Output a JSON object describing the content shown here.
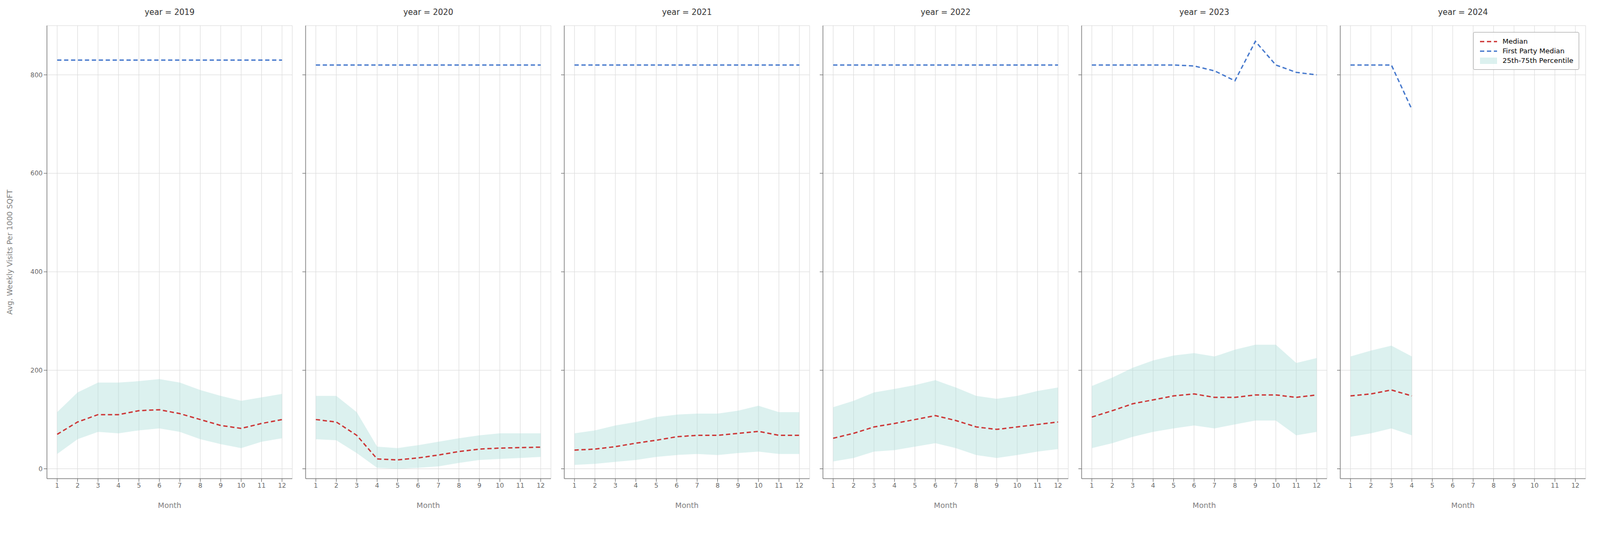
{
  "chart_data": [
    {
      "type": "line",
      "title": "year = 2019",
      "xlabel": "Month",
      "ylabel": "Avg. Weekly Visits Per 1000 SQFT",
      "x": [
        1,
        2,
        3,
        4,
        5,
        6,
        7,
        8,
        9,
        10,
        11,
        12
      ],
      "xlim": [
        0.5,
        12.5
      ],
      "xticks": [
        1,
        2,
        3,
        4,
        5,
        6,
        7,
        8,
        9,
        10,
        11,
        12
      ],
      "ylim": [
        -20,
        900
      ],
      "yticks": [
        0,
        200,
        400,
        600,
        800
      ],
      "grid": true,
      "series": [
        {
          "name": "Median",
          "color": "#cc3333",
          "line_style": "dashed",
          "values": [
            70,
            95,
            110,
            110,
            118,
            120,
            112,
            100,
            88,
            82,
            92,
            100
          ]
        },
        {
          "name": "First Party Median",
          "color": "#4477cc",
          "line_style": "dashed",
          "values": [
            830,
            830,
            830,
            830,
            830,
            830,
            830,
            830,
            830,
            830,
            830,
            830
          ]
        },
        {
          "name": "25th-75th Percentile",
          "type": "area",
          "color": "#b2dfdb",
          "lower": [
            30,
            60,
            75,
            72,
            78,
            82,
            75,
            60,
            50,
            42,
            55,
            62
          ],
          "upper": [
            115,
            155,
            175,
            175,
            178,
            182,
            175,
            160,
            148,
            138,
            145,
            152
          ]
        }
      ]
    },
    {
      "type": "line",
      "title": "year = 2020",
      "xlabel": "Month",
      "x": [
        1,
        2,
        3,
        4,
        5,
        6,
        7,
        8,
        9,
        10,
        11,
        12
      ],
      "xlim": [
        0.5,
        12.5
      ],
      "xticks": [
        1,
        2,
        3,
        4,
        5,
        6,
        7,
        8,
        9,
        10,
        11,
        12
      ],
      "ylim": [
        -20,
        900
      ],
      "yticks": [
        0,
        200,
        400,
        600,
        800
      ],
      "grid": true,
      "tick_labels": "x",
      "series": [
        {
          "name": "Median",
          "color": "#cc3333",
          "line_style": "dashed",
          "values": [
            100,
            95,
            68,
            20,
            18,
            22,
            28,
            35,
            40,
            42,
            43,
            44
          ]
        },
        {
          "name": "First Party Median",
          "color": "#4477cc",
          "line_style": "dashed",
          "values": [
            820,
            820,
            820,
            820,
            820,
            820,
            820,
            820,
            820,
            820,
            820,
            820
          ]
        },
        {
          "name": "25th-75th Percentile",
          "type": "area",
          "color": "#b2dfdb",
          "lower": [
            60,
            58,
            32,
            2,
            0,
            2,
            5,
            12,
            18,
            20,
            22,
            24
          ],
          "upper": [
            148,
            148,
            115,
            45,
            42,
            48,
            55,
            62,
            68,
            72,
            72,
            72
          ]
        }
      ]
    },
    {
      "type": "line",
      "title": "year = 2021",
      "xlabel": "Month",
      "x": [
        1,
        2,
        3,
        4,
        5,
        6,
        7,
        8,
        9,
        10,
        11,
        12
      ],
      "xlim": [
        0.5,
        12.5
      ],
      "xticks": [
        1,
        2,
        3,
        4,
        5,
        6,
        7,
        8,
        9,
        10,
        11,
        12
      ],
      "ylim": [
        -20,
        900
      ],
      "yticks": [
        0,
        200,
        400,
        600,
        800
      ],
      "grid": true,
      "tick_labels": "x",
      "series": [
        {
          "name": "Median",
          "color": "#cc3333",
          "line_style": "dashed",
          "values": [
            38,
            40,
            45,
            52,
            58,
            65,
            68,
            68,
            72,
            76,
            68,
            68
          ]
        },
        {
          "name": "First Party Median",
          "color": "#4477cc",
          "line_style": "dashed",
          "values": [
            820,
            820,
            820,
            820,
            820,
            820,
            820,
            820,
            820,
            820,
            820,
            820
          ]
        },
        {
          "name": "25th-75th Percentile",
          "type": "area",
          "color": "#b2dfdb",
          "lower": [
            8,
            10,
            14,
            18,
            24,
            28,
            30,
            28,
            32,
            35,
            30,
            30
          ],
          "upper": [
            72,
            78,
            88,
            95,
            105,
            110,
            112,
            112,
            118,
            128,
            115,
            115
          ]
        }
      ]
    },
    {
      "type": "line",
      "title": "year = 2022",
      "xlabel": "Month",
      "x": [
        1,
        2,
        3,
        4,
        5,
        6,
        7,
        8,
        9,
        10,
        11,
        12
      ],
      "xlim": [
        0.5,
        12.5
      ],
      "xticks": [
        1,
        2,
        3,
        4,
        5,
        6,
        7,
        8,
        9,
        10,
        11,
        12
      ],
      "ylim": [
        -20,
        900
      ],
      "yticks": [
        0,
        200,
        400,
        600,
        800
      ],
      "grid": true,
      "tick_labels": "x",
      "series": [
        {
          "name": "Median",
          "color": "#cc3333",
          "line_style": "dashed",
          "values": [
            62,
            72,
            85,
            92,
            100,
            108,
            98,
            85,
            80,
            85,
            90,
            95
          ]
        },
        {
          "name": "First Party Median",
          "color": "#4477cc",
          "line_style": "dashed",
          "values": [
            820,
            820,
            820,
            820,
            820,
            820,
            820,
            820,
            820,
            820,
            820,
            820
          ]
        },
        {
          "name": "25th-75th Percentile",
          "type": "area",
          "color": "#b2dfdb",
          "lower": [
            15,
            22,
            35,
            38,
            45,
            52,
            42,
            28,
            22,
            28,
            35,
            40
          ],
          "upper": [
            125,
            138,
            155,
            162,
            170,
            180,
            165,
            148,
            142,
            148,
            158,
            165
          ]
        }
      ]
    },
    {
      "type": "line",
      "title": "year = 2023",
      "xlabel": "Month",
      "x": [
        1,
        2,
        3,
        4,
        5,
        6,
        7,
        8,
        9,
        10,
        11,
        12
      ],
      "xlim": [
        0.5,
        12.5
      ],
      "xticks": [
        1,
        2,
        3,
        4,
        5,
        6,
        7,
        8,
        9,
        10,
        11,
        12
      ],
      "ylim": [
        -20,
        900
      ],
      "yticks": [
        0,
        200,
        400,
        600,
        800
      ],
      "grid": true,
      "tick_labels": "x",
      "series": [
        {
          "name": "Median",
          "color": "#cc3333",
          "line_style": "dashed",
          "values": [
            105,
            118,
            132,
            140,
            148,
            152,
            145,
            145,
            150,
            150,
            145,
            150
          ]
        },
        {
          "name": "First Party Median",
          "color": "#4477cc",
          "line_style": "dashed",
          "values": [
            820,
            820,
            820,
            820,
            820,
            818,
            808,
            788,
            868,
            820,
            805,
            800
          ]
        },
        {
          "name": "25th-75th Percentile",
          "type": "area",
          "color": "#b2dfdb",
          "lower": [
            42,
            52,
            65,
            75,
            82,
            88,
            82,
            90,
            98,
            98,
            68,
            75
          ],
          "upper": [
            168,
            185,
            205,
            220,
            230,
            235,
            228,
            242,
            252,
            252,
            215,
            225
          ]
        }
      ]
    },
    {
      "type": "line",
      "title": "year = 2024",
      "xlabel": "Month",
      "x": [
        1,
        2,
        3,
        4
      ],
      "xlim": [
        0.5,
        12.5
      ],
      "xticks": [
        1,
        2,
        3,
        4,
        5,
        6,
        7,
        8,
        9,
        10,
        11,
        12
      ],
      "ylim": [
        -20,
        900
      ],
      "yticks": [
        0,
        200,
        400,
        600,
        800
      ],
      "grid": true,
      "tick_labels": "x",
      "legend": "upper right",
      "series": [
        {
          "name": "Median",
          "color": "#cc3333",
          "line_style": "dashed",
          "values": [
            148,
            152,
            160,
            148
          ]
        },
        {
          "name": "First Party Median",
          "color": "#4477cc",
          "line_style": "dashed",
          "values": [
            820,
            820,
            820,
            730
          ]
        },
        {
          "name": "25th-75th Percentile",
          "type": "area",
          "color": "#b2dfdb",
          "lower": [
            65,
            72,
            82,
            68
          ],
          "upper": [
            228,
            240,
            250,
            228
          ]
        }
      ]
    }
  ]
}
